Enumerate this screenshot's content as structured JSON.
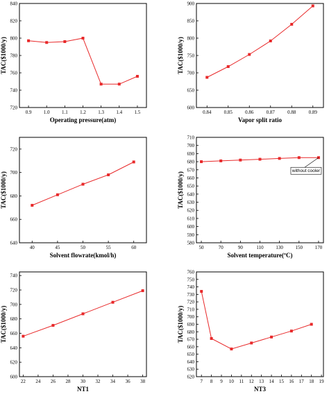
{
  "chart_data": [
    {
      "type": "line",
      "xlabel": "Operating pressure(atm)",
      "ylabel": "TAC($1000/y)",
      "xlim": [
        0.85,
        1.55
      ],
      "ylim": [
        720,
        840
      ],
      "xticks": [
        "0.9",
        "1.0",
        "1.1",
        "1.2",
        "1.3",
        "1.4",
        "1.5"
      ],
      "yticks": [
        "720",
        "740",
        "760",
        "780",
        "800",
        "820",
        "840"
      ],
      "series": [
        {
          "x": [
            0.9,
            1.0,
            1.1,
            1.2,
            1.3,
            1.4,
            1.5
          ],
          "y": [
            797,
            795,
            796,
            800,
            747,
            747,
            756
          ]
        }
      ],
      "color": "#e8292a",
      "grid": false
    },
    {
      "type": "line",
      "xlabel": "Vapor split ratio",
      "ylabel": "TAC($1000/y)",
      "xlim": [
        0.835,
        0.895
      ],
      "ylim": [
        600,
        900
      ],
      "xticks": [
        "0.84",
        "0.85",
        "0.86",
        "0.87",
        "0.88",
        "0.89"
      ],
      "yticks": [
        "600",
        "650",
        "700",
        "750",
        "800",
        "850",
        "900"
      ],
      "series": [
        {
          "x": [
            0.84,
            0.85,
            0.86,
            0.87,
            0.88,
            0.89
          ],
          "y": [
            687,
            718,
            753,
            792,
            840,
            893
          ]
        }
      ],
      "color": "#e8292a",
      "grid": false
    },
    {
      "type": "line",
      "xlabel": "Solvent  flowrate(kmol/h)",
      "ylabel": "TAC($1000/y)",
      "xlim": [
        37.5,
        62.5
      ],
      "ylim": [
        640,
        730
      ],
      "xticks": [
        "40",
        "45",
        "50",
        "55",
        "60"
      ],
      "yticks": [
        "640",
        "660",
        "680",
        "700",
        "720"
      ],
      "series": [
        {
          "x": [
            40,
            45,
            50,
            55,
            60
          ],
          "y": [
            672,
            681,
            690,
            698,
            709
          ]
        }
      ],
      "color": "#e8292a",
      "grid": false
    },
    {
      "type": "line",
      "xlabel": "Solvent temperature(ºC)",
      "ylabel": "TAC($1000/y)",
      "xlim": [
        45,
        175
      ],
      "ylim": [
        580,
        710
      ],
      "xticks": [
        "50",
        "70",
        "90",
        "110",
        "130",
        "150",
        "170"
      ],
      "yticks": [
        "580",
        "590",
        "600",
        "610",
        "620",
        "630",
        "640",
        "650",
        "660",
        "670",
        "680",
        "690",
        "700",
        "710"
      ],
      "series": [
        {
          "x": [
            50,
            70,
            90,
            110,
            130,
            150,
            170
          ],
          "y": [
            680,
            681,
            682,
            683,
            684,
            685,
            685
          ]
        }
      ],
      "annotation": "without cooler",
      "color": "#e8292a",
      "grid": false
    },
    {
      "type": "line",
      "xlabel": "NT1",
      "ylabel": "TAC($1000/y)",
      "xlim": [
        21.5,
        38.5
      ],
      "ylim": [
        600,
        745
      ],
      "xticks": [
        "22",
        "24",
        "26",
        "28",
        "30",
        "32",
        "34",
        "36",
        "38"
      ],
      "yticks": [
        "600",
        "620",
        "640",
        "660",
        "680",
        "700",
        "720",
        "740"
      ],
      "series": [
        {
          "x": [
            22,
            26,
            30,
            34,
            38
          ],
          "y": [
            656,
            671,
            687,
            703,
            719
          ]
        }
      ],
      "color": "#e8292a",
      "grid": false
    },
    {
      "type": "line",
      "xlabel": "NT3",
      "ylabel": "TAC($1000/y)",
      "xlim": [
        6.5,
        19.2
      ],
      "ylim": [
        620,
        760
      ],
      "xticks": [
        "7",
        "8",
        "9",
        "10",
        "11",
        "12",
        "13",
        "14",
        "15",
        "16",
        "17",
        "18",
        "19"
      ],
      "yticks": [
        "620",
        "630",
        "640",
        "650",
        "660",
        "670",
        "680",
        "690",
        "700",
        "710",
        "720",
        "730",
        "740",
        "750",
        "760"
      ],
      "series": [
        {
          "x": [
            7,
            8,
            10,
            12,
            14,
            16,
            18
          ],
          "y": [
            734,
            671,
            657,
            665,
            673,
            681,
            690
          ]
        }
      ],
      "color": "#e8292a",
      "grid": false
    }
  ]
}
